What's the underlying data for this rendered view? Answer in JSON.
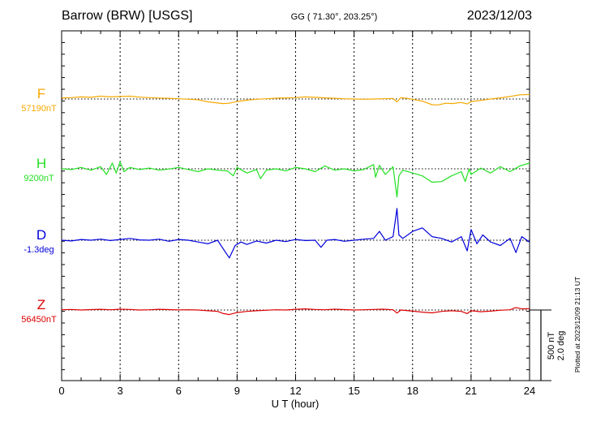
{
  "header": {
    "station": "Barrow (BRW)  [USGS]",
    "coords": "GG ( 71.30°, 203.25°)",
    "date": "2023/12/03"
  },
  "footer": {
    "plotted": "Plotted at 2023/12/09 21:13 UT"
  },
  "chart_data": {
    "type": "line",
    "title": "Barrow (BRW)  [USGS]",
    "xlabel": "U T (hour)",
    "xlim": [
      0,
      24
    ],
    "xticks": [
      0,
      3,
      6,
      9,
      12,
      15,
      18,
      21,
      24
    ],
    "xtick_labels": [
      "0",
      "3",
      "6",
      "9",
      "12",
      "15",
      "18",
      "21",
      "24"
    ],
    "scale": {
      "nt_label": "500 nT",
      "deg_label": "2.0 deg",
      "nt": 500
    },
    "series": [
      {
        "name": "F",
        "baseline_label": "57190nT",
        "color": "#f5a800",
        "baseline": 57190,
        "unit": "nT",
        "x": [
          0,
          0.5,
          1,
          1.5,
          2,
          2.5,
          3,
          3.5,
          4,
          4.5,
          5,
          5.5,
          6,
          6.5,
          7,
          7.5,
          8,
          8.3,
          8.6,
          9,
          9.5,
          10,
          10.5,
          11,
          11.5,
          12,
          12.5,
          13,
          13.5,
          14,
          14.5,
          15,
          15.5,
          16,
          16.5,
          17,
          17.2,
          17.4,
          17.7,
          18,
          18.5,
          19,
          19.3,
          19.7,
          20,
          20.5,
          20.8,
          21,
          21.5,
          22,
          22.5,
          23,
          23.5,
          24
        ],
        "values": [
          57198,
          57200,
          57205,
          57202,
          57210,
          57205,
          57208,
          57210,
          57203,
          57200,
          57197,
          57195,
          57192,
          57188,
          57185,
          57170,
          57162,
          57158,
          57160,
          57172,
          57182,
          57188,
          57192,
          57196,
          57198,
          57200,
          57205,
          57202,
          57198,
          57195,
          57192,
          57190,
          57188,
          57190,
          57192,
          57194,
          57170,
          57200,
          57195,
          57188,
          57175,
          57150,
          57148,
          57160,
          57158,
          57165,
          57155,
          57172,
          57180,
          57190,
          57198,
          57208,
          57220,
          57222
        ]
      },
      {
        "name": "H",
        "baseline_label": "9200nT",
        "color": "#22e022",
        "baseline": 9200,
        "unit": "nT",
        "x": [
          0,
          0.5,
          1,
          1.5,
          2,
          2.3,
          2.6,
          2.8,
          3,
          3.2,
          3.5,
          4,
          4.5,
          5,
          5.5,
          6,
          6.5,
          7,
          7.5,
          8,
          8.5,
          8.8,
          9,
          9.5,
          10,
          10.2,
          10.5,
          11,
          11.5,
          12,
          12.5,
          13,
          13.5,
          14,
          14.5,
          15,
          15.5,
          16,
          16.1,
          16.3,
          16.6,
          17,
          17.2,
          17.3,
          17.5,
          18,
          18.5,
          19,
          19.5,
          20,
          20.5,
          20.7,
          20.9,
          21,
          21.5,
          22,
          22.5,
          23,
          23.5,
          24
        ],
        "values": [
          9200,
          9195,
          9210,
          9190,
          9215,
          9160,
          9240,
          9170,
          9250,
          9180,
          9210,
          9195,
          9205,
          9190,
          9198,
          9210,
          9195,
          9180,
          9200,
          9190,
          9185,
          9150,
          9210,
          9170,
          9195,
          9130,
          9190,
          9200,
          9185,
          9210,
          9200,
          9180,
          9220,
          9190,
          9200,
          9185,
          9195,
          9230,
          9140,
          9225,
          9160,
          9215,
          9000,
          9150,
          9190,
          9170,
          9150,
          9105,
          9110,
          9150,
          9180,
          9110,
          9200,
          9160,
          9205,
          9170,
          9215,
          9180,
          9220,
          9240
        ]
      },
      {
        "name": "D",
        "baseline_label": "-1.3deg",
        "color": "#0000dd",
        "baseline": -1.3,
        "unit": "deg",
        "x": [
          0,
          0.5,
          1,
          1.5,
          2,
          2.5,
          3,
          3.5,
          4,
          4.5,
          5,
          5.5,
          6,
          6.5,
          7,
          7.5,
          8,
          8.3,
          8.6,
          8.9,
          9.2,
          9.5,
          10,
          10.5,
          11,
          11.5,
          12,
          12.5,
          13,
          13.3,
          13.6,
          14,
          14.5,
          15,
          15.5,
          16,
          16.3,
          16.6,
          17,
          17.2,
          17.3,
          17.5,
          18,
          18.5,
          19,
          19.5,
          20,
          20.5,
          20.8,
          21,
          21.3,
          21.6,
          22,
          22.5,
          23,
          23.3,
          23.6,
          24
        ],
        "values": [
          -1.3,
          -1.32,
          -1.28,
          -1.3,
          -1.27,
          -1.31,
          -1.28,
          -1.25,
          -1.29,
          -1.3,
          -1.27,
          -1.33,
          -1.28,
          -1.3,
          -1.35,
          -1.4,
          -1.3,
          -1.55,
          -1.8,
          -1.45,
          -1.35,
          -1.42,
          -1.32,
          -1.38,
          -1.3,
          -1.34,
          -1.28,
          -1.31,
          -1.3,
          -1.5,
          -1.3,
          -1.28,
          -1.33,
          -1.3,
          -1.27,
          -1.25,
          -1.05,
          -1.3,
          -1.2,
          -0.4,
          -1.15,
          -1.25,
          -1.05,
          -0.95,
          -1.2,
          -1.25,
          -1.35,
          -1.2,
          -1.6,
          -1.0,
          -1.4,
          -1.15,
          -1.35,
          -1.45,
          -1.25,
          -1.65,
          -1.2,
          -1.35
        ]
      },
      {
        "name": "Z",
        "baseline_label": "56450nT",
        "color": "#dd0000",
        "baseline": 56450,
        "unit": "nT",
        "x": [
          0,
          0.5,
          1,
          1.5,
          2,
          2.5,
          3,
          3.5,
          4,
          4.5,
          5,
          5.5,
          6,
          6.5,
          7,
          7.5,
          8,
          8.3,
          8.6,
          9,
          9.5,
          10,
          10.5,
          11,
          11.5,
          12,
          12.5,
          13,
          13.5,
          14,
          14.5,
          15,
          15.5,
          16,
          16.5,
          17,
          17.2,
          17.4,
          18,
          18.5,
          19,
          19.5,
          20,
          20.5,
          20.8,
          21,
          21.5,
          22,
          22.5,
          23,
          23.3,
          23.6,
          24
        ],
        "values": [
          56452,
          56454,
          56450,
          56453,
          56455,
          56452,
          56456,
          56454,
          56450,
          56452,
          56455,
          56453,
          56451,
          56452,
          56450,
          56445,
          56440,
          56425,
          56418,
          56432,
          56440,
          56445,
          56448,
          56452,
          56450,
          56455,
          56458,
          56454,
          56452,
          56456,
          56453,
          56450,
          56452,
          56454,
          56456,
          56452,
          56428,
          56450,
          56442,
          56435,
          56430,
          56440,
          56445,
          56440,
          56425,
          56445,
          56438,
          56442,
          56448,
          56452,
          56468,
          56458,
          56460
        ]
      }
    ]
  }
}
